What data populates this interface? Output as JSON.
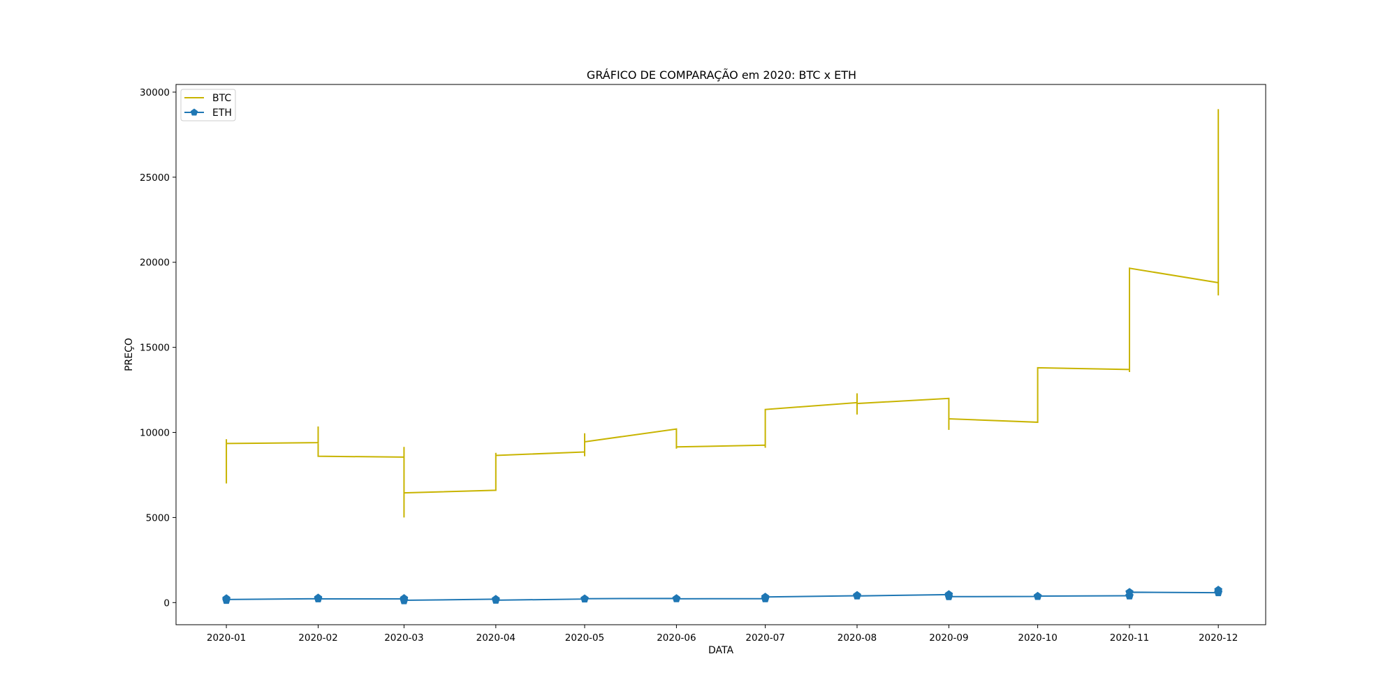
{
  "chart_data": {
    "type": "line",
    "title": "GRÁFICO DE COMPARAÇÃO em 2020: BTC x ETH",
    "xlabel": "DATA",
    "ylabel": "PREÇO",
    "xlim": [
      "2019-12-15",
      "2020-12-17"
    ],
    "ylim": [
      -1300,
      30450
    ],
    "x_ticks": [
      "2020-01",
      "2020-02",
      "2020-03",
      "2020-04",
      "2020-05",
      "2020-06",
      "2020-07",
      "2020-08",
      "2020-09",
      "2020-10",
      "2020-11",
      "2020-12"
    ],
    "y_ticks": [
      0,
      5000,
      10000,
      15000,
      20000,
      25000,
      30000
    ],
    "grid": false,
    "legend": "upper left",
    "series": [
      {
        "name": "BTC",
        "color": "#c8b400",
        "marker": "none",
        "points": [
          [
            "2020-01-01",
            7000
          ],
          [
            "2020-01-01",
            9600
          ],
          [
            "2020-01-01",
            9350
          ],
          [
            "2020-02-01",
            9400
          ],
          [
            "2020-02-01",
            10350
          ],
          [
            "2020-02-01",
            8600
          ],
          [
            "2020-03-01",
            8550
          ],
          [
            "2020-03-01",
            9150
          ],
          [
            "2020-03-01",
            5000
          ],
          [
            "2020-03-01",
            6450
          ],
          [
            "2020-04-01",
            6600
          ],
          [
            "2020-04-01",
            8800
          ],
          [
            "2020-04-01",
            8650
          ],
          [
            "2020-05-01",
            8850
          ],
          [
            "2020-05-01",
            8600
          ],
          [
            "2020-05-01",
            9950
          ],
          [
            "2020-05-01",
            9450
          ],
          [
            "2020-06-01",
            10200
          ],
          [
            "2020-06-01",
            9050
          ],
          [
            "2020-06-01",
            9150
          ],
          [
            "2020-07-01",
            9250
          ],
          [
            "2020-07-01",
            9100
          ],
          [
            "2020-07-01",
            11350
          ],
          [
            "2020-08-01",
            11750
          ],
          [
            "2020-08-01",
            12300
          ],
          [
            "2020-08-01",
            11050
          ],
          [
            "2020-08-01",
            11700
          ],
          [
            "2020-09-01",
            12000
          ],
          [
            "2020-09-01",
            10150
          ],
          [
            "2020-09-01",
            10800
          ],
          [
            "2020-10-01",
            10600
          ],
          [
            "2020-10-01",
            10700
          ],
          [
            "2020-10-01",
            13800
          ],
          [
            "2020-11-01",
            13700
          ],
          [
            "2020-11-01",
            13550
          ],
          [
            "2020-11-01",
            19650
          ],
          [
            "2020-12-01",
            18800
          ],
          [
            "2020-12-01",
            18050
          ],
          [
            "2020-12-01",
            29000
          ]
        ]
      },
      {
        "name": "ETH",
        "color": "#1f77b4",
        "marker": "pentagon",
        "points": [
          [
            "2020-01-01",
            130
          ],
          [
            "2020-01-01",
            240
          ],
          [
            "2020-01-01",
            180
          ],
          [
            "2020-02-01",
            230
          ],
          [
            "2020-02-01",
            280
          ],
          [
            "2020-02-01",
            220
          ],
          [
            "2020-03-01",
            220
          ],
          [
            "2020-03-01",
            110
          ],
          [
            "2020-03-01",
            250
          ],
          [
            "2020-03-01",
            135
          ],
          [
            "2020-04-01",
            200
          ],
          [
            "2020-04-01",
            140
          ],
          [
            "2020-05-01",
            210
          ],
          [
            "2020-05-01",
            230
          ],
          [
            "2020-06-01",
            245
          ],
          [
            "2020-06-01",
            225
          ],
          [
            "2020-07-01",
            230
          ],
          [
            "2020-07-01",
            225
          ],
          [
            "2020-07-01",
            330
          ],
          [
            "2020-08-01",
            400
          ],
          [
            "2020-08-01",
            430
          ],
          [
            "2020-08-01",
            390
          ],
          [
            "2020-09-01",
            470
          ],
          [
            "2020-09-01",
            480
          ],
          [
            "2020-09-01",
            350
          ],
          [
            "2020-10-01",
            360
          ],
          [
            "2020-10-01",
            380
          ],
          [
            "2020-11-01",
            400
          ],
          [
            "2020-11-01",
            390
          ],
          [
            "2020-11-01",
            610
          ],
          [
            "2020-12-01",
            580
          ],
          [
            "2020-12-01",
            620
          ],
          [
            "2020-12-01",
            740
          ]
        ]
      }
    ]
  }
}
